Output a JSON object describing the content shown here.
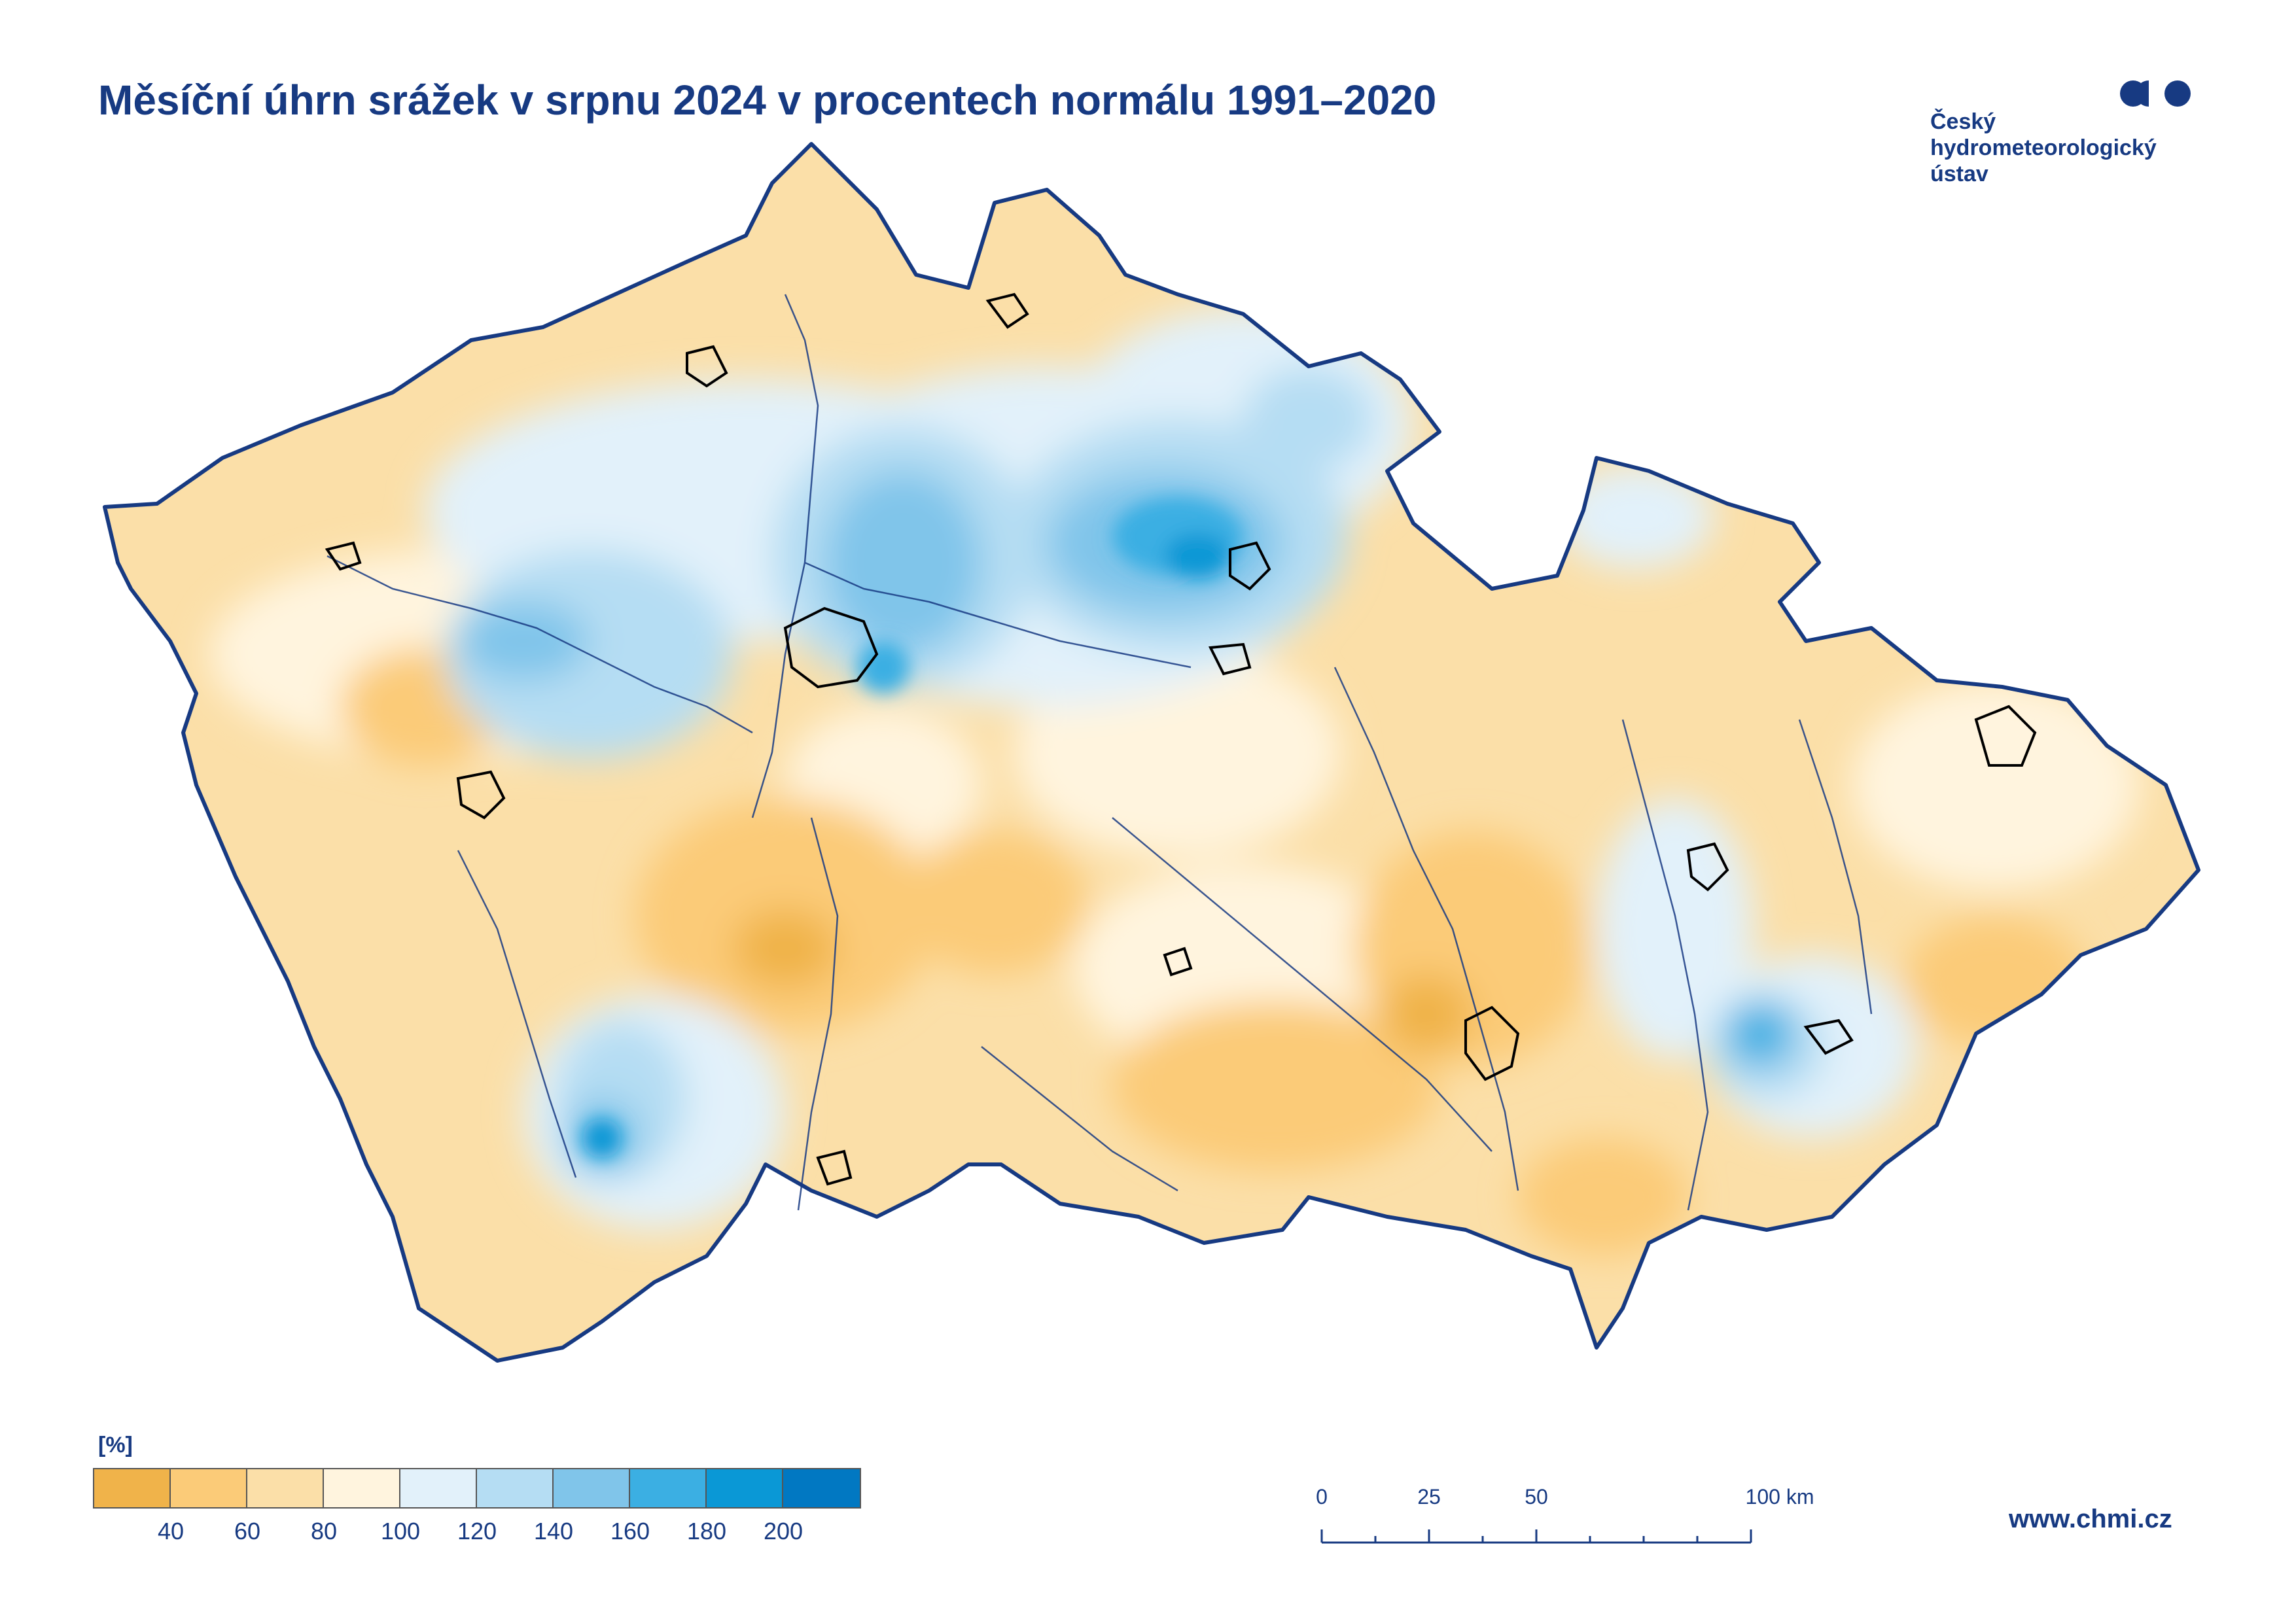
{
  "title": "Měsíční úhrn srážek v srpnu 2024 v procentech normálu 1991–2020",
  "logo": {
    "icon": "chmi-logo-icon",
    "lines": [
      "Český",
      "hydrometeorologický",
      "ústav"
    ],
    "color": "#173A82"
  },
  "legend": {
    "unit": "[%]",
    "colors": [
      "#F0B34A",
      "#FBCB78",
      "#FBDFA8",
      "#FFF4DE",
      "#E2F1FA",
      "#B5DDF3",
      "#80C5EA",
      "#3BAFE3",
      "#0A98D6",
      "#0178C2"
    ],
    "tick_labels": [
      "40",
      "60",
      "80",
      "100",
      "120",
      "140",
      "160",
      "180",
      "200"
    ]
  },
  "scale_bar": {
    "labels": [
      "0",
      "25",
      "50",
      "100 km"
    ]
  },
  "website": "www.chmi.cz",
  "map": {
    "border_color": "#173A82",
    "river_color": "#173A82",
    "city_outline_color": "#000000"
  }
}
